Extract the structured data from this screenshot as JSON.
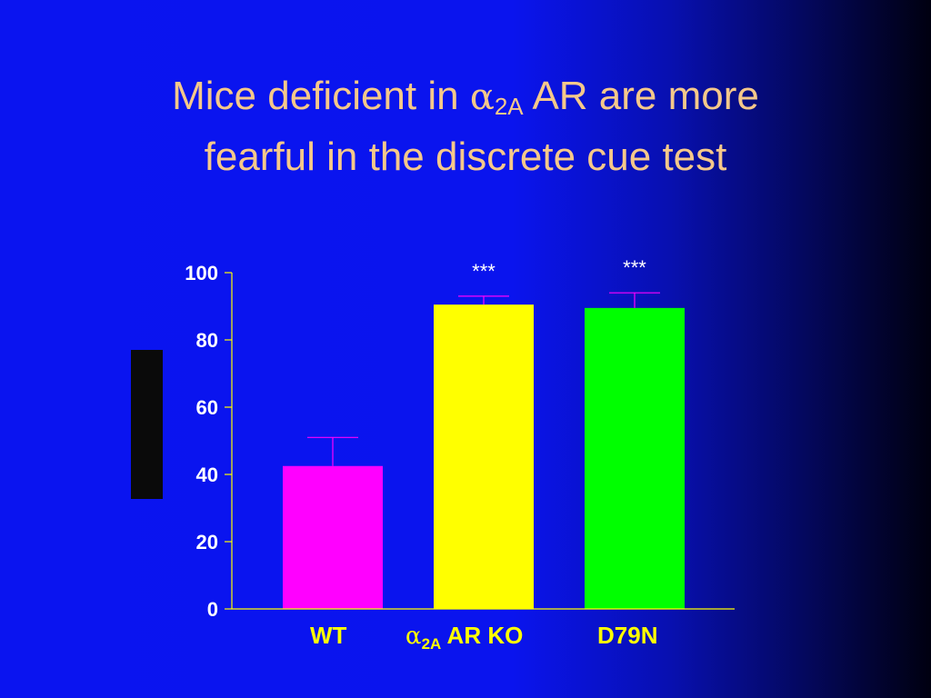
{
  "slide": {
    "title_line1_pre": "Mice deficient in ",
    "title_greek": "α",
    "title_sub": "2A",
    "title_line1_post": " AR are more",
    "title_line2": "fearful in the discrete cue test"
  },
  "xticks": {
    "wt": "WT",
    "ko_greek": "α",
    "ko_sub": "2A",
    "ko_rest": " AR  KO",
    "d79n": "D79N"
  },
  "colors": {
    "axis": "#ffff00",
    "tick_label": "#ffffff",
    "title": "#f5c88a",
    "error_bar": "#ff00ff",
    "significance": "#ffffff"
  },
  "chart_data": {
    "type": "bar",
    "categories": [
      "WT",
      "α2A AR KO",
      "D79N"
    ],
    "values": [
      42.5,
      90.5,
      89.5
    ],
    "error_upper": [
      51,
      93,
      94
    ],
    "bar_colors": [
      "#ff00ff",
      "#ffff00",
      "#00ff00"
    ],
    "significance": [
      "",
      "***",
      "***"
    ],
    "ylim": [
      0,
      100
    ],
    "yticks": [
      0,
      20,
      40,
      60,
      80,
      100
    ],
    "ytick_labels": [
      "0",
      "20",
      "40",
      "60",
      "80",
      "100"
    ],
    "title": "Mice deficient in α2A AR are more fearful in the discrete cue test",
    "xlabel": "",
    "ylabel": "",
    "grid": false
  }
}
